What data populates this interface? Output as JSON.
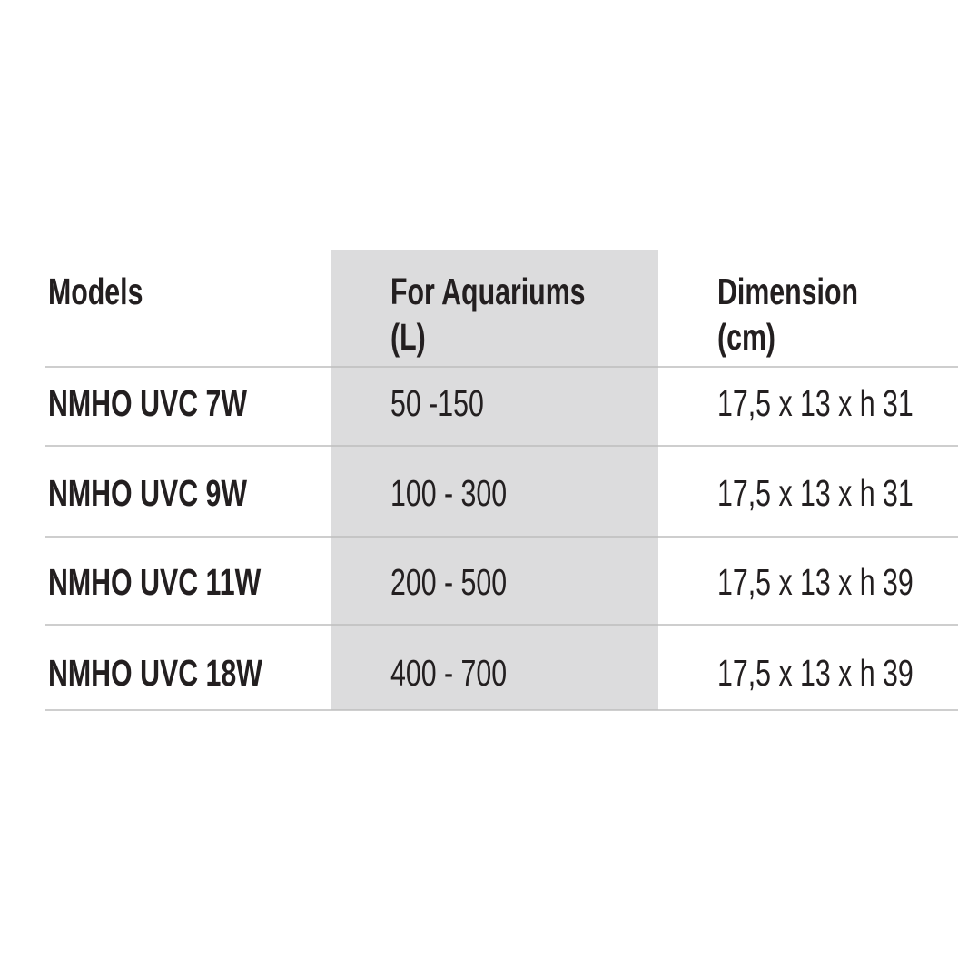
{
  "table": {
    "header": [
      [
        "Models"
      ],
      [
        "For Aquariums",
        "(L)"
      ],
      [
        "Dimension",
        "(cm)"
      ]
    ],
    "rows": [
      [
        "NMHO UVC 7W",
        "50 -150",
        "17,5 x 13 x h 31"
      ],
      [
        "NMHO UVC 9W",
        "100 - 300",
        "17,5 x 13 x h 31"
      ],
      [
        "NMHO UVC 11W",
        "200 - 500",
        "17,5 x 13 x h 39"
      ],
      [
        "NMHO UVC 18W",
        "400 - 700",
        "17,5 x 13 x h 39"
      ]
    ]
  }
}
